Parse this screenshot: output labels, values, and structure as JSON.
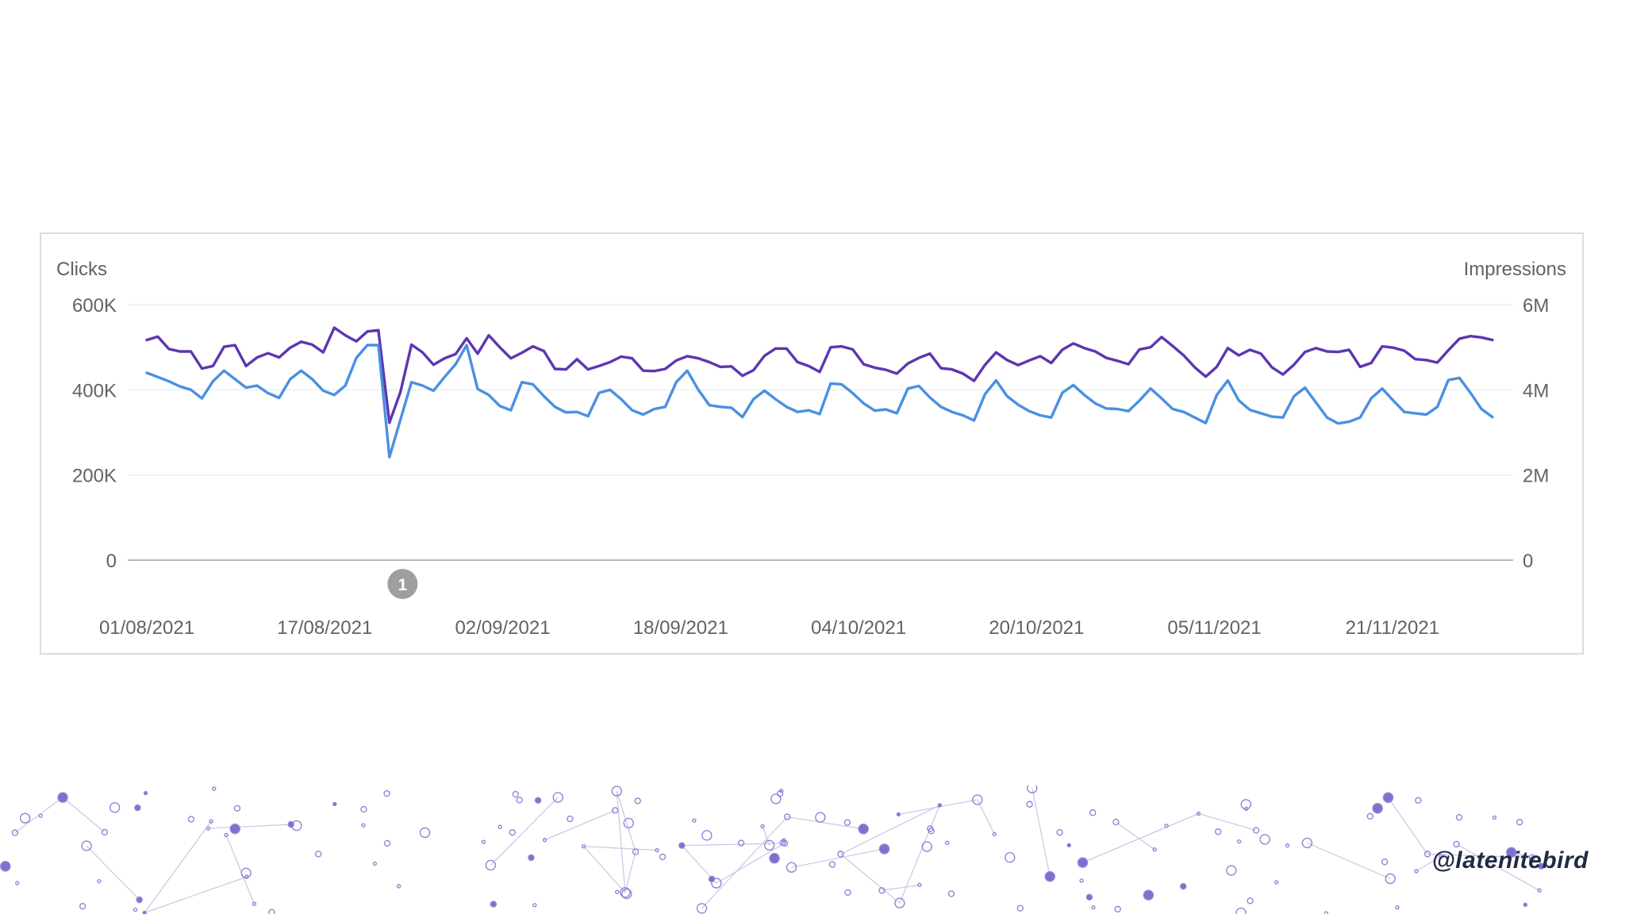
{
  "handle": "@latenitebird",
  "chart_data": {
    "type": "line",
    "left_axis_title": "Clicks",
    "right_axis_title": "Impressions",
    "left_axis": {
      "min": 0,
      "max": 600000,
      "ticks": [
        0,
        200000,
        400000,
        600000
      ],
      "tick_labels": [
        "0",
        "200K",
        "400K",
        "600K"
      ]
    },
    "right_axis": {
      "min": 0,
      "max": 6000000,
      "ticks": [
        0,
        2000000,
        4000000,
        6000000
      ],
      "tick_labels": [
        "0",
        "2M",
        "4M",
        "6M"
      ]
    },
    "x_tick_labels": [
      "01/08/2021",
      "17/08/2021",
      "02/09/2021",
      "18/09/2021",
      "04/10/2021",
      "20/10/2021",
      "05/11/2021",
      "21/11/2021"
    ],
    "x_start": "2021-08-01",
    "x_end": "2021-11-30",
    "grid": true,
    "annotations": [
      {
        "label": "1",
        "date": "2021-08-24"
      }
    ],
    "series": [
      {
        "axis": "right",
        "color": "#5e35b1",
        "values": [
          5170000,
          5250000,
          4960000,
          4900000,
          4900000,
          4500000,
          4560000,
          5010000,
          5050000,
          4560000,
          4760000,
          4860000,
          4760000,
          4990000,
          5130000,
          5060000,
          4880000,
          5460000,
          5280000,
          5140000,
          5370000,
          5400000,
          3230000,
          3950000,
          5060000,
          4880000,
          4590000,
          4740000,
          4840000,
          5210000,
          4850000,
          5280000,
          5000000,
          4740000,
          4870000,
          5020000,
          4910000,
          4490000,
          4480000,
          4720000,
          4480000,
          4560000,
          4650000,
          4780000,
          4740000,
          4450000,
          4440000,
          4490000,
          4690000,
          4790000,
          4740000,
          4650000,
          4540000,
          4550000,
          4330000,
          4460000,
          4800000,
          4970000,
          4970000,
          4650000,
          4560000,
          4420000,
          5000000,
          5020000,
          4950000,
          4600000,
          4520000,
          4470000,
          4380000,
          4620000,
          4750000,
          4850000,
          4510000,
          4480000,
          4380000,
          4210000,
          4590000,
          4880000,
          4700000,
          4580000,
          4690000,
          4790000,
          4630000,
          4940000,
          5090000,
          4980000,
          4900000,
          4750000,
          4680000,
          4600000,
          4950000,
          5000000,
          5240000,
          5030000,
          4810000,
          4530000,
          4310000,
          4540000,
          4980000,
          4810000,
          4940000,
          4850000,
          4530000,
          4360000,
          4590000,
          4890000,
          4980000,
          4900000,
          4890000,
          4940000,
          4540000,
          4630000,
          5020000,
          4990000,
          4920000,
          4720000,
          4700000,
          4640000,
          4930000,
          5200000,
          5260000,
          5230000,
          5170000
        ]
      },
      {
        "axis": "left",
        "color": "#4a90e2",
        "values": [
          440000,
          430000,
          420000,
          408000,
          400000,
          380000,
          420000,
          445000,
          425000,
          405000,
          410000,
          392000,
          381000,
          425000,
          445000,
          425000,
          398000,
          388000,
          410000,
          475000,
          505000,
          505000,
          242000,
          330000,
          418000,
          410000,
          398000,
          430000,
          460000,
          505000,
          402000,
          388000,
          362000,
          352000,
          418000,
          413000,
          385000,
          360000,
          347000,
          348000,
          338000,
          393000,
          400000,
          378000,
          352000,
          342000,
          355000,
          360000,
          418000,
          445000,
          400000,
          364000,
          360000,
          358000,
          336000,
          378000,
          398000,
          378000,
          360000,
          348000,
          352000,
          343000,
          415000,
          413000,
          392000,
          368000,
          351000,
          354000,
          345000,
          403000,
          409000,
          382000,
          360000,
          348000,
          340000,
          328000,
          390000,
          422000,
          385000,
          365000,
          350000,
          340000,
          335000,
          393000,
          411000,
          388000,
          368000,
          356000,
          355000,
          350000,
          375000,
          403000,
          380000,
          355000,
          348000,
          335000,
          322000,
          388000,
          422000,
          375000,
          353000,
          345000,
          337000,
          335000,
          385000,
          405000,
          370000,
          335000,
          321000,
          325000,
          335000,
          380000,
          403000,
          375000,
          348000,
          345000,
          342000,
          360000,
          423000,
          428000,
          393000,
          355000,
          336000
        ]
      }
    ]
  }
}
